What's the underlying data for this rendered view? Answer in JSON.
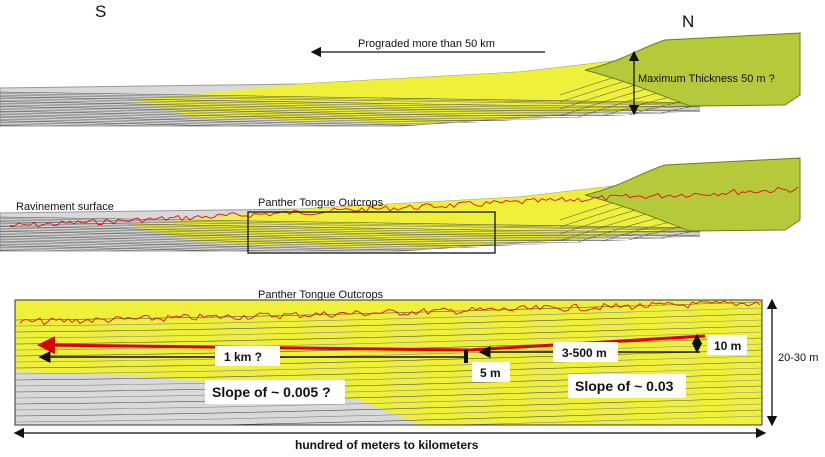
{
  "compass": {
    "south": "S",
    "north": "N"
  },
  "panel_1": {
    "arrow_label": "Prograded more than 50 km",
    "thickness_label": "Maximum Thickness 50 m ?"
  },
  "panel_2": {
    "surface_label": "Ravinement surface",
    "outcrop_label": "Panther Tongue Outcrops"
  },
  "panel_3": {
    "outcrop_label": "Panther Tongue Outcrops",
    "distance_label": "1 km ?",
    "slope_distance_label": "3-500 m",
    "relief_label": "10 m",
    "step_label": "5 m",
    "thickness_label": "20-30 m",
    "slope_south": "Slope of ~ 0.005 ?",
    "slope_north": "Slope of ~ 0.03",
    "width_label": "hundred of meters to kilometers"
  }
}
